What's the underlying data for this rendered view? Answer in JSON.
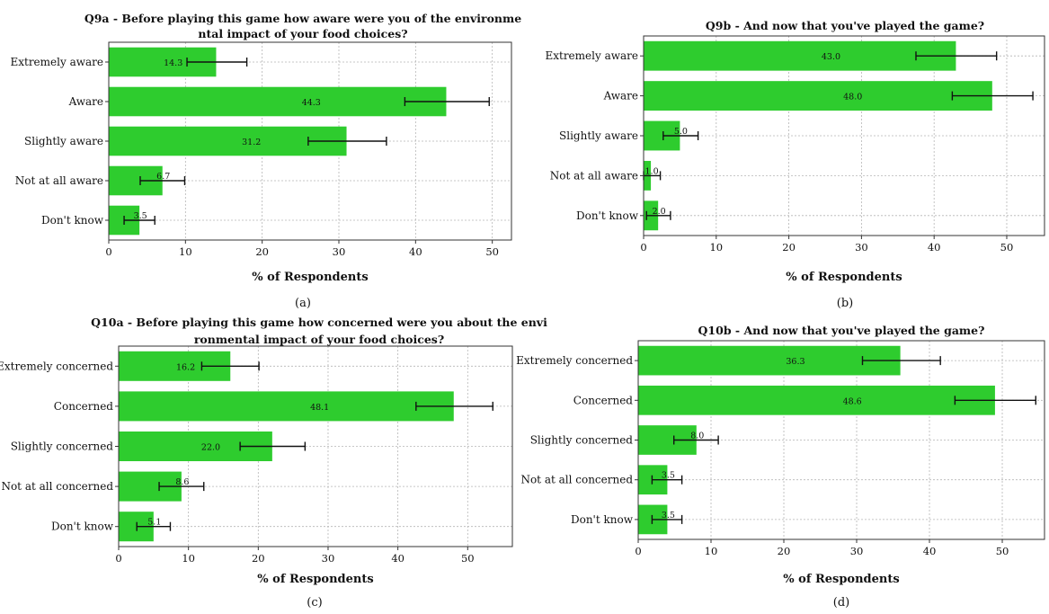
{
  "chart_data": [
    {
      "type": "bar",
      "orientation": "horizontal",
      "title": "Q9a - Before playing this game how aware were you of the environmental impact of your food choices?",
      "categories": [
        "Extremely aware",
        "Aware",
        "Slightly aware",
        "Not at all aware",
        "Don't know"
      ],
      "values": [
        14.0,
        44.0,
        31.0,
        7.0,
        4.0
      ],
      "value_labels": [
        "14.3",
        "44.3",
        "31.2",
        "6.7",
        "3.5"
      ],
      "error_low": [
        10.2,
        38.6,
        26.0,
        4.1,
        2.0
      ],
      "error_high": [
        18.0,
        49.6,
        36.2,
        9.9,
        6.0
      ],
      "xlabel": "% of Respondents",
      "xlim": [
        0,
        52.5
      ],
      "xticks": [
        0,
        10,
        20,
        30,
        40,
        50
      ],
      "grid": true,
      "caption": "(a)",
      "bar_color": "#2ecc2e"
    },
    {
      "type": "bar",
      "orientation": "horizontal",
      "title": "Q9b - And now that you've played the game?",
      "categories": [
        "Extremely aware",
        "Aware",
        "Slightly aware",
        "Not at all aware",
        "Don't know"
      ],
      "values": [
        43.0,
        48.0,
        5.0,
        1.0,
        2.0
      ],
      "value_labels": [
        "43.0",
        "48.0",
        "5.0",
        "1.0",
        "2.0"
      ],
      "error_low": [
        37.5,
        42.5,
        2.7,
        0.0,
        0.4
      ],
      "error_high": [
        48.6,
        53.6,
        7.5,
        2.3,
        3.7
      ],
      "xlabel": "% of Respondents",
      "xlim": [
        0,
        55.2
      ],
      "xticks": [
        0,
        10,
        20,
        30,
        40,
        50
      ],
      "grid": true,
      "caption": "(b)",
      "bar_color": "#2ecc2e"
    },
    {
      "type": "bar",
      "orientation": "horizontal",
      "title": "Q10a - Before playing this game how concerned were you about the environmental impact of your food choices?",
      "categories": [
        "Extremely concerned",
        "Concerned",
        "Slightly concerned",
        "Not at all concerned",
        "Don't know"
      ],
      "values": [
        16.0,
        48.0,
        22.0,
        9.0,
        5.0
      ],
      "value_labels": [
        "16.2",
        "48.1",
        "22.0",
        "8.6",
        "5.1"
      ],
      "error_low": [
        11.9,
        42.6,
        17.4,
        5.8,
        2.6
      ],
      "error_high": [
        20.1,
        53.6,
        26.7,
        12.2,
        7.4
      ],
      "xlabel": "% of Respondents",
      "xlim": [
        0,
        56.4
      ],
      "xticks": [
        0,
        10,
        20,
        30,
        40,
        50
      ],
      "grid": true,
      "caption": "(c)",
      "bar_color": "#2ecc2e"
    },
    {
      "type": "bar",
      "orientation": "horizontal",
      "title": "Q10b - And now that you've played the game?",
      "categories": [
        "Extremely concerned",
        "Concerned",
        "Slightly concerned",
        "Not at all concerned",
        "Don't know"
      ],
      "values": [
        36.0,
        49.0,
        8.0,
        4.0,
        4.0
      ],
      "value_labels": [
        "36.3",
        "48.6",
        "8.0",
        "3.5",
        "3.5"
      ],
      "error_low": [
        30.8,
        43.5,
        4.9,
        1.9,
        1.9
      ],
      "error_high": [
        41.5,
        54.6,
        11.0,
        6.0,
        6.0
      ],
      "xlabel": "% of Respondents",
      "xlim": [
        0,
        55.8
      ],
      "xticks": [
        0,
        10,
        20,
        30,
        40,
        50
      ],
      "grid": true,
      "caption": "(d)",
      "bar_color": "#2ecc2e"
    }
  ]
}
